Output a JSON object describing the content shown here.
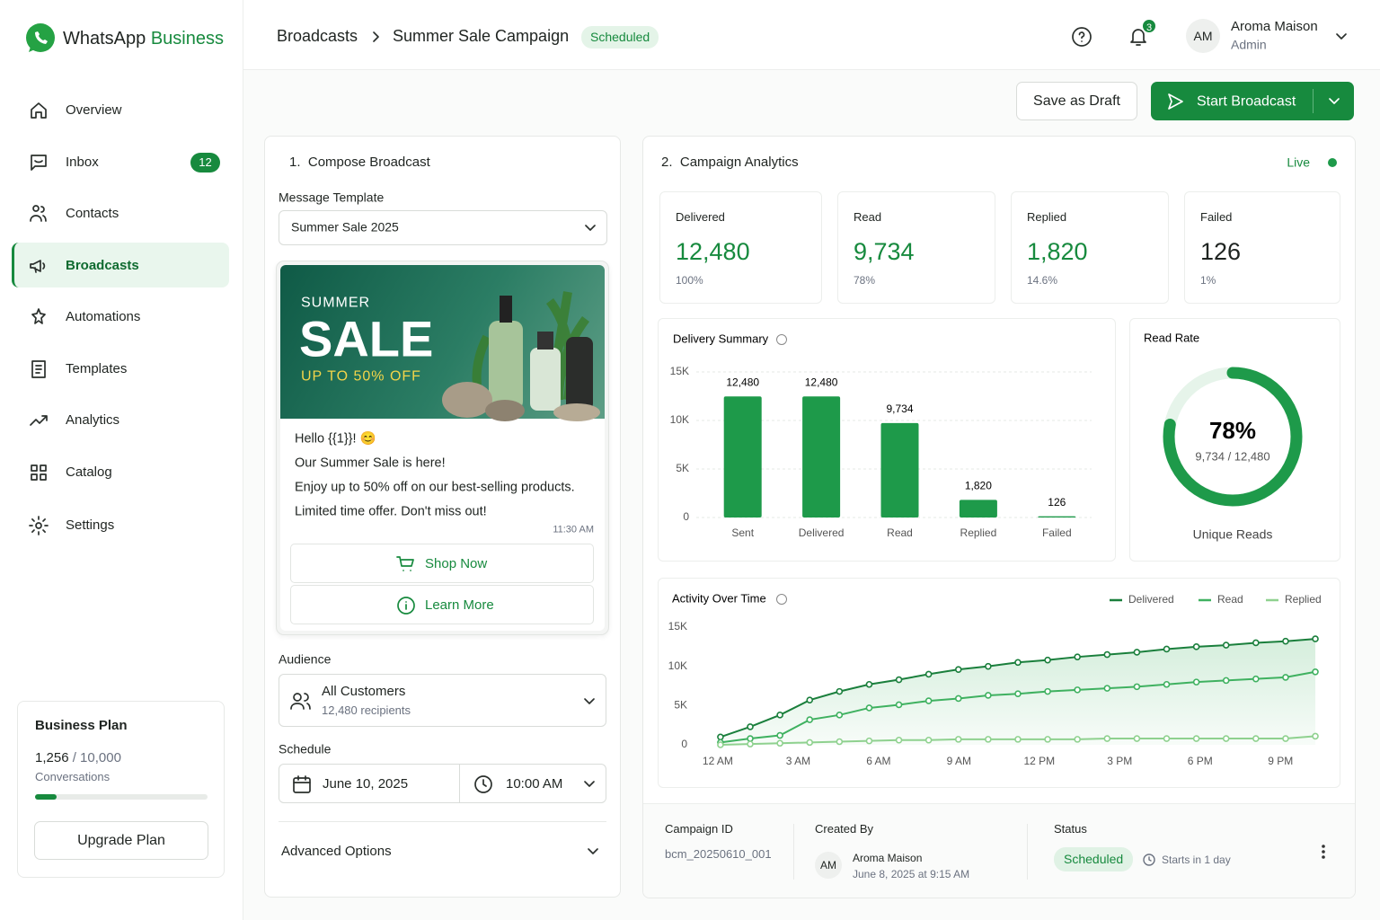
{
  "sidebar": {
    "brand": "WhatsApp",
    "brand_accent": "Business",
    "nav": [
      {
        "label": "Overview"
      },
      {
        "label": "Inbox",
        "badge": "12"
      },
      {
        "label": "Contacts"
      },
      {
        "label": "Broadcasts"
      },
      {
        "label": "Automations"
      },
      {
        "label": "Templates"
      },
      {
        "label": "Analytics"
      },
      {
        "label": "Catalog"
      },
      {
        "label": "Settings"
      }
    ],
    "plan": {
      "title": "Business Plan",
      "used_text": "1,256",
      "limit_text": "/ 10,000",
      "unit": "Conversations",
      "used": 1256,
      "limit": 10000,
      "button": "Upgrade Plan"
    }
  },
  "header": {
    "breadcrumb": [
      "Broadcasts",
      "Summer Sale Campaign"
    ],
    "status": "Scheduled",
    "notifications": "3",
    "user": {
      "initials": "AM",
      "name": "Aroma Maison",
      "role": "Admin"
    }
  },
  "actions": {
    "draft": "Save as Draft",
    "start": "Start Broadcast"
  },
  "compose": {
    "step": "1.",
    "title": "Compose Broadcast",
    "template_label": "Message Template",
    "template": "Summer Sale 2025",
    "banner": {
      "kicker": "SUMMER",
      "headline": "SALE",
      "offer": "UP TO 50% OFF"
    },
    "message": [
      "Hello {{1}}! 😊",
      "Our Summer Sale is here!",
      "Enjoy up to 50% off on our best-selling products.",
      "Limited time offer. Don't miss out!"
    ],
    "time": "11:30 AM",
    "buttons": [
      "Shop Now",
      "Learn More"
    ],
    "audience_label": "Audience",
    "audience": "All Customers",
    "audience_count": "12,480 recipients",
    "schedule_label": "Schedule",
    "date": "June 10, 2025",
    "clock": "10:00 AM",
    "advanced": "Advanced Options"
  },
  "analytics": {
    "step": "2.",
    "title": "Campaign Analytics",
    "live": "Live",
    "stats": [
      {
        "label": "Delivered",
        "value": "12,480",
        "sub": "100%"
      },
      {
        "label": "Read",
        "value": "9,734",
        "sub": "78%"
      },
      {
        "label": "Replied",
        "value": "1,820",
        "sub": "14.6%"
      },
      {
        "label": "Failed",
        "value": "126",
        "sub": "1%"
      }
    ]
  },
  "chart_data": [
    {
      "type": "bar",
      "title": "Delivery Summary",
      "categories": [
        "Sent",
        "Delivered",
        "Read",
        "Replied",
        "Failed"
      ],
      "values": [
        12480,
        12480,
        9734,
        1820,
        126
      ],
      "value_labels": [
        "12,480",
        "12,480",
        "9,734",
        "1,820",
        "126"
      ],
      "color": "#1e9a4a",
      "ylim": [
        0,
        15000
      ],
      "yticks": [
        0,
        {
          "value": 5000,
          "label": "5K"
        },
        {
          "value": 10000,
          "label": "10K"
        },
        {
          "value": 15000,
          "label": "15K"
        }
      ],
      "grid": true
    },
    {
      "type": "donut",
      "title": "Read Rate",
      "values": [
        78
      ],
      "value_labels": [
        "78%"
      ],
      "subtitle": "9,734 / 12,480",
      "caption": "Unique Reads",
      "color": "#1e9a4a",
      "track_color": "#e6f4ea"
    },
    {
      "type": "line",
      "title": "Activity Over Time",
      "x": [
        0.1,
        1.21,
        2.32,
        3.43,
        4.54,
        5.65,
        6.76,
        7.87,
        8.98,
        10.09,
        11.2,
        12.31,
        13.42,
        14.53,
        15.64,
        16.75,
        17.86,
        18.97,
        20.08,
        21.19,
        22.3
      ],
      "xlim": [
        -0.4,
        22.5
      ],
      "xticks": [
        {
          "value": 0,
          "label": "12 AM"
        },
        {
          "value": 3,
          "label": "3 AM"
        },
        {
          "value": 6,
          "label": "6 AM"
        },
        {
          "value": 9,
          "label": "9 AM"
        },
        {
          "value": 12,
          "label": "12 PM"
        },
        {
          "value": 15,
          "label": "3 PM"
        },
        {
          "value": 18,
          "label": "6 PM"
        },
        {
          "value": 21,
          "label": "9 PM"
        }
      ],
      "ylim": [
        0,
        15000
      ],
      "yticks": [
        0,
        {
          "value": 5000,
          "label": "5K"
        },
        {
          "value": 10000,
          "label": "10K"
        },
        {
          "value": 15000,
          "label": "15K"
        }
      ],
      "grid": false,
      "legend": "top-right",
      "series": [
        {
          "name": "Delivered",
          "color": "#1a7f3c",
          "values": [
            1000,
            2300,
            3800,
            5700,
            6800,
            7700,
            8300,
            9000,
            9600,
            10000,
            10500,
            10800,
            11200,
            11500,
            11800,
            12200,
            12500,
            12700,
            13000,
            13200,
            13500
          ]
        },
        {
          "name": "Read",
          "color": "#3fb160",
          "values": [
            300,
            800,
            1200,
            3200,
            3800,
            4700,
            5100,
            5600,
            5900,
            6300,
            6500,
            6800,
            7000,
            7200,
            7400,
            7700,
            8000,
            8200,
            8400,
            8600,
            9300
          ]
        },
        {
          "name": "Replied",
          "color": "#8fd18f",
          "values": [
            0,
            100,
            200,
            300,
            400,
            500,
            600,
            600,
            700,
            700,
            700,
            700,
            700,
            800,
            800,
            800,
            800,
            800,
            800,
            800,
            1100
          ]
        }
      ]
    }
  ],
  "footer": {
    "id_label": "Campaign ID",
    "id": "bcm_20250610_001",
    "created_label": "Created By",
    "initials": "AM",
    "creator": "Aroma Maison",
    "created": "June 8, 2025 at 9:15 AM",
    "status_label": "Status",
    "status": "Scheduled",
    "starts": "Starts in 1 day"
  }
}
